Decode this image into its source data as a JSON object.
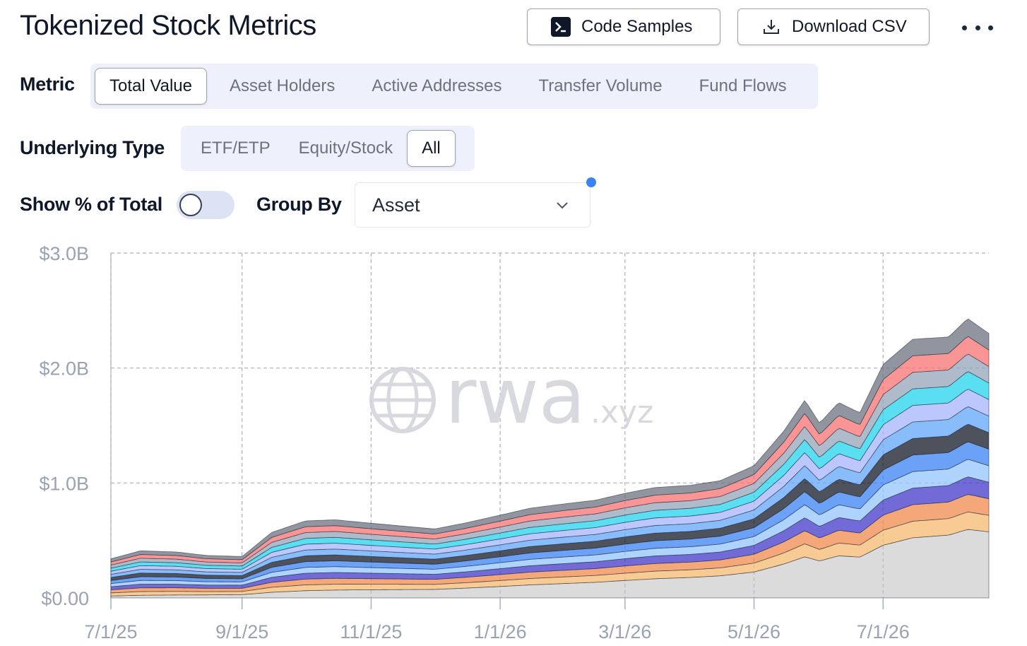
{
  "header": {
    "title": "Tokenized Stock Metrics",
    "code_samples_label": "Code Samples",
    "download_csv_label": "Download CSV"
  },
  "metric": {
    "label": "Metric",
    "options": [
      "Total Value",
      "Asset Holders",
      "Active Addresses",
      "Transfer Volume",
      "Fund Flows"
    ],
    "selected": "Total Value"
  },
  "underlying_type": {
    "label": "Underlying Type",
    "options": [
      "ETF/ETP",
      "Equity/Stock",
      "All"
    ],
    "selected": "All"
  },
  "show_pct": {
    "label": "Show % of Total",
    "enabled": false
  },
  "group_by": {
    "label": "Group By",
    "value": "Asset"
  },
  "watermark": {
    "brand": "rwa",
    "suffix": ".xyz"
  },
  "icons": [
    "terminal-icon",
    "download-icon",
    "more-icon",
    "chevron-down-icon",
    "globe-icon"
  ],
  "chart_data": {
    "type": "area",
    "stacked": true,
    "y_tick_labels": [
      "$0.00",
      "$1.0B",
      "$2.0B",
      "$3.0B"
    ],
    "ylim": [
      0,
      3.0
    ],
    "y_unit": "billions USD",
    "x_tick_labels": [
      "7/1/25",
      "9/1/25",
      "11/1/25",
      "1/1/26",
      "3/1/26",
      "5/1/26",
      "7/1/26"
    ],
    "xlim": [
      "2025-07-01",
      "2026-08-20"
    ],
    "grid": true,
    "series_colors": [
      "#bdbdbd",
      "#f5b971",
      "#f08a4b",
      "#4338ca",
      "#93c5fd",
      "#3b82f6",
      "#111827",
      "#60a5fa",
      "#a5b4fc",
      "#22d3ee",
      "#94a3b8",
      "#f87171",
      "#6b7280"
    ],
    "total": [
      {
        "x": "2025-07-01",
        "y": 0.34
      },
      {
        "x": "2025-07-15",
        "y": 0.41
      },
      {
        "x": "2025-08-01",
        "y": 0.4
      },
      {
        "x": "2025-08-15",
        "y": 0.37
      },
      {
        "x": "2025-09-01",
        "y": 0.36
      },
      {
        "x": "2025-09-15",
        "y": 0.57
      },
      {
        "x": "2025-10-01",
        "y": 0.67
      },
      {
        "x": "2025-10-15",
        "y": 0.68
      },
      {
        "x": "2025-11-01",
        "y": 0.65
      },
      {
        "x": "2025-12-01",
        "y": 0.6
      },
      {
        "x": "2025-12-15",
        "y": 0.65
      },
      {
        "x": "2026-01-01",
        "y": 0.72
      },
      {
        "x": "2026-01-15",
        "y": 0.78
      },
      {
        "x": "2026-02-01",
        "y": 0.82
      },
      {
        "x": "2026-02-15",
        "y": 0.85
      },
      {
        "x": "2026-03-01",
        "y": 0.91
      },
      {
        "x": "2026-03-15",
        "y": 0.96
      },
      {
        "x": "2026-04-01",
        "y": 0.98
      },
      {
        "x": "2026-04-15",
        "y": 1.02
      },
      {
        "x": "2026-05-01",
        "y": 1.15
      },
      {
        "x": "2026-05-15",
        "y": 1.45
      },
      {
        "x": "2026-05-25",
        "y": 1.72
      },
      {
        "x": "2026-06-01",
        "y": 1.52
      },
      {
        "x": "2026-06-10",
        "y": 1.7
      },
      {
        "x": "2026-06-20",
        "y": 1.61
      },
      {
        "x": "2026-07-01",
        "y": 2.03
      },
      {
        "x": "2026-07-15",
        "y": 2.25
      },
      {
        "x": "2026-08-01",
        "y": 2.27
      },
      {
        "x": "2026-08-10",
        "y": 2.43
      },
      {
        "x": "2026-08-20",
        "y": 2.3
      }
    ]
  }
}
